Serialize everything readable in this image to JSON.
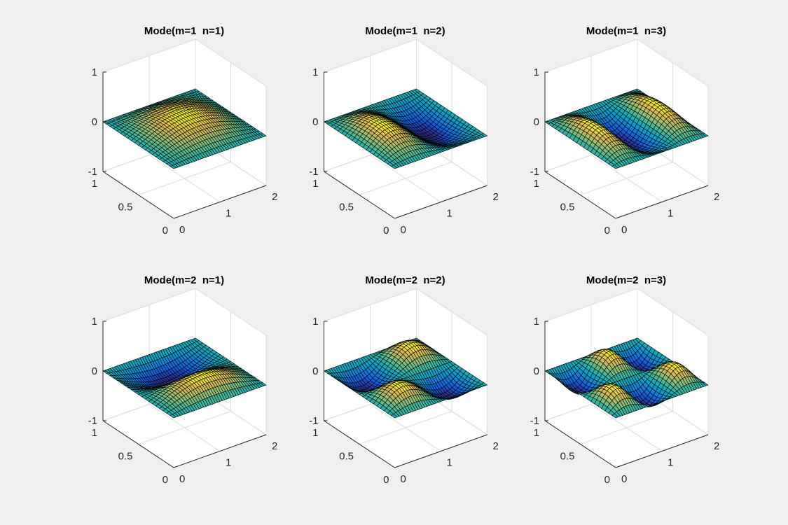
{
  "figure": {
    "background": "#f0f0f0",
    "colormap": "parula"
  },
  "chart_data": [
    {
      "type": "surface",
      "title": "Mode(m=1  n=1)",
      "m": 1,
      "n": 1,
      "amplitude": 0.3,
      "xlim": [
        0,
        2
      ],
      "ylim": [
        0,
        1
      ],
      "zlim": [
        -1,
        1
      ],
      "xticks": [
        "0",
        "1",
        "2"
      ],
      "yticks": [
        "0",
        "0.5",
        "1"
      ],
      "zticks": [
        "-1",
        "0",
        "1"
      ],
      "grid": true,
      "edgecolor": "#000000"
    },
    {
      "type": "surface",
      "title": "Mode(m=1  n=2)",
      "m": 1,
      "n": 2,
      "amplitude": 0.3,
      "xlim": [
        0,
        2
      ],
      "ylim": [
        0,
        1
      ],
      "zlim": [
        -1,
        1
      ],
      "xticks": [
        "0",
        "1",
        "2"
      ],
      "yticks": [
        "0",
        "0.5",
        "1"
      ],
      "zticks": [
        "-1",
        "0",
        "1"
      ],
      "grid": true,
      "edgecolor": "#000000"
    },
    {
      "type": "surface",
      "title": "Mode(m=1  n=3)",
      "m": 1,
      "n": 3,
      "amplitude": 0.3,
      "xlim": [
        0,
        2
      ],
      "ylim": [
        0,
        1
      ],
      "zlim": [
        -1,
        1
      ],
      "xticks": [
        "0",
        "1",
        "2"
      ],
      "yticks": [
        "0",
        "0.5",
        "1"
      ],
      "zticks": [
        "-1",
        "0",
        "1"
      ],
      "grid": true,
      "edgecolor": "#000000"
    },
    {
      "type": "surface",
      "title": "Mode(m=2  n=1)",
      "m": 2,
      "n": 1,
      "amplitude": 0.3,
      "xlim": [
        0,
        2
      ],
      "ylim": [
        0,
        1
      ],
      "zlim": [
        -1,
        1
      ],
      "xticks": [
        "0",
        "1",
        "2"
      ],
      "yticks": [
        "0",
        "0.5",
        "1"
      ],
      "zticks": [
        "-1",
        "0",
        "1"
      ],
      "grid": true,
      "edgecolor": "#000000"
    },
    {
      "type": "surface",
      "title": "Mode(m=2  n=2)",
      "m": 2,
      "n": 2,
      "amplitude": 0.3,
      "xlim": [
        0,
        2
      ],
      "ylim": [
        0,
        1
      ],
      "zlim": [
        -1,
        1
      ],
      "xticks": [
        "0",
        "1",
        "2"
      ],
      "yticks": [
        "0",
        "0.5",
        "1"
      ],
      "zticks": [
        "-1",
        "0",
        "1"
      ],
      "grid": true,
      "edgecolor": "#000000"
    },
    {
      "type": "surface",
      "title": "Mode(m=2  n=3)",
      "m": 2,
      "n": 3,
      "amplitude": 0.3,
      "xlim": [
        0,
        2
      ],
      "ylim": [
        0,
        1
      ],
      "zlim": [
        -1,
        1
      ],
      "xticks": [
        "0",
        "1",
        "2"
      ],
      "yticks": [
        "0",
        "0.5",
        "1"
      ],
      "zticks": [
        "-1",
        "0",
        "1"
      ],
      "grid": true,
      "edgecolor": "#000000"
    }
  ]
}
